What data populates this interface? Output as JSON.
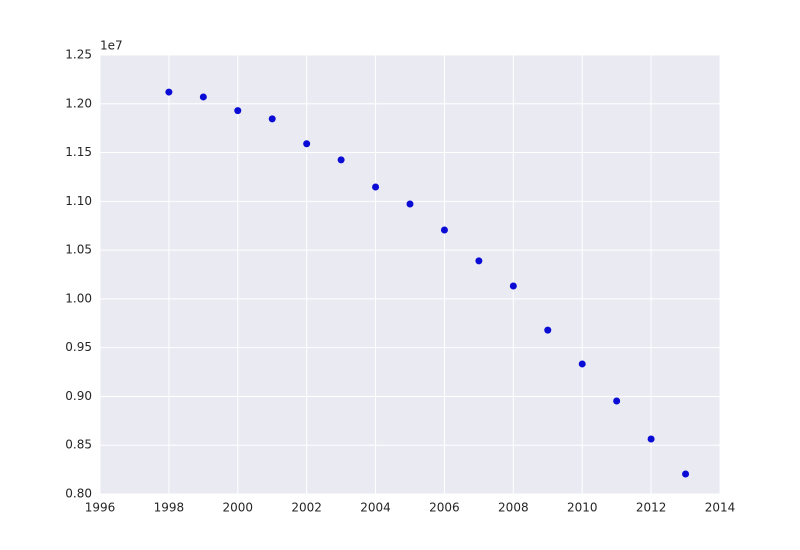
{
  "chart_data": {
    "type": "scatter",
    "offset_label": "1e7",
    "x": [
      1998,
      1999,
      2000,
      2001,
      2002,
      2003,
      2004,
      2005,
      2006,
      2007,
      2008,
      2009,
      2010,
      2011,
      2012,
      2013
    ],
    "values": [
      12120000,
      12070000,
      11930000,
      11845000,
      11590000,
      11425000,
      11147000,
      10973000,
      10706000,
      10390000,
      10132000,
      9680000,
      9333000,
      8953000,
      8564000,
      8205000
    ],
    "color": "#0b0bd6",
    "xlim": [
      1996,
      2014
    ],
    "xticks": [
      1996,
      1998,
      2000,
      2002,
      2004,
      2006,
      2008,
      2010,
      2012,
      2014
    ],
    "ylim": [
      8000000,
      12500000
    ],
    "yticks": [
      {
        "value": 8000000,
        "label": "0.80"
      },
      {
        "value": 8500000,
        "label": "0.85"
      },
      {
        "value": 9000000,
        "label": "0.90"
      },
      {
        "value": 9500000,
        "label": "0.95"
      },
      {
        "value": 10000000,
        "label": "1.00"
      },
      {
        "value": 10500000,
        "label": "1.05"
      },
      {
        "value": 11000000,
        "label": "1.10"
      },
      {
        "value": 11500000,
        "label": "1.15"
      },
      {
        "value": 12000000,
        "label": "1.20"
      },
      {
        "value": 12500000,
        "label": "1.25"
      }
    ],
    "grid": true
  }
}
